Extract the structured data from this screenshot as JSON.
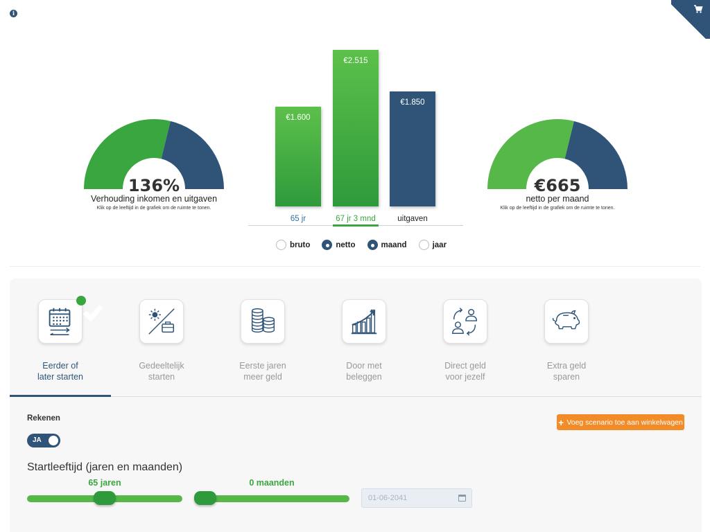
{
  "header": {
    "info_icon": "info-icon",
    "cart_icon": "shopping-cart-icon"
  },
  "gauges": {
    "ratio": {
      "value": "136%",
      "label": "Verhouding inkomen en uitgaven",
      "help": "Klik op de leeftijd in de grafiek om de ruimte te tonen.",
      "income_fraction": 0.576
    },
    "net": {
      "value": "€665",
      "label": "netto per maand",
      "help": "Klik op de leeftijd in de grafiek om de ruimte te tonen.",
      "income_fraction": 0.576
    },
    "colors": {
      "income": "#3aa640",
      "income_light": "#57b84a",
      "expense": "#2f5478"
    }
  },
  "chart_data": {
    "type": "bar",
    "categories": [
      "65 jr",
      "67 jr 3 mnd",
      "uitgaven"
    ],
    "values": [
      1600,
      2515,
      1850
    ],
    "value_labels": [
      "€1.600",
      "€2.515",
      "€1.850"
    ],
    "ylim": [
      0,
      2515
    ],
    "colors": [
      "#3aa640",
      "#3aa640",
      "#2f5478"
    ],
    "category_colors": [
      "#2f6fa8",
      "#3aa640",
      "#222222"
    ],
    "selected_category": "67 jr 3 mnd"
  },
  "display_options": [
    {
      "label": "bruto",
      "checked": false
    },
    {
      "label": "netto",
      "checked": true
    },
    {
      "label": "maand",
      "checked": true
    },
    {
      "label": "jaar",
      "checked": false
    }
  ],
  "scenarios": [
    {
      "label": "Eerder of\nlater starten",
      "icon": "calendar-arrows-icon",
      "active": true,
      "done": true
    },
    {
      "label": "Gedeeltelijk\nstarten",
      "icon": "sun-briefcase-icon",
      "active": false,
      "done": false
    },
    {
      "label": "Eerste jaren\nmeer geld",
      "icon": "coin-stacks-icon",
      "active": false,
      "done": false
    },
    {
      "label": "Door met\nbeleggen",
      "icon": "growth-chart-icon",
      "active": false,
      "done": false
    },
    {
      "label": "Direct geld\nvoor jezelf",
      "icon": "persons-exchange-icon",
      "active": false,
      "done": false
    },
    {
      "label": "Extra geld\nsparen",
      "icon": "piggy-bank-icon",
      "active": false,
      "done": false
    }
  ],
  "calculator": {
    "rekenen_label": "Rekenen",
    "toggle_label": "JA",
    "toggle_on": true,
    "add_button_label": "Voeg scenario toe aan winkelwagen",
    "section_title": "Startleeftijd (jaren en maanden)",
    "years_label": "65 jaren",
    "years_fraction": 0.5,
    "months_label": "0 maanden",
    "months_fraction": 0.0,
    "date_placeholder": "01-06-2041"
  }
}
